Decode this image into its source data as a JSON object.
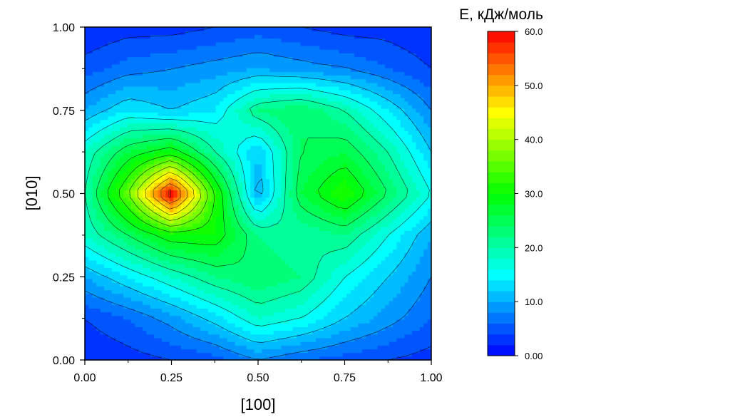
{
  "chart_data": {
    "type": "heatmap",
    "subtype": "filled-contour",
    "xlabel": "[100]",
    "ylabel": "[010]",
    "xlim": [
      0,
      1
    ],
    "ylim": [
      0,
      1
    ],
    "x_ticks": [
      "0.00",
      "0.25",
      "0.50",
      "0.75",
      "1.00"
    ],
    "y_ticks": [
      "0.00",
      "0.25",
      "0.50",
      "0.75",
      "1.00"
    ],
    "x_tick_values": [
      0,
      0.25,
      0.5,
      0.75,
      1
    ],
    "y_tick_values": [
      0,
      0.25,
      0.5,
      0.75,
      1
    ],
    "colorbar": {
      "title": "E, кДж/моль",
      "range": [
        0,
        60
      ],
      "levels": 30,
      "tick_values": [
        0,
        10,
        20,
        30,
        40,
        50,
        60
      ],
      "tick_labels": [
        "0.00",
        "10.0",
        "20.0",
        "30.0",
        "40.0",
        "50.0",
        "60.0"
      ]
    },
    "grid": false,
    "x": [
      0,
      0.125,
      0.25,
      0.375,
      0.5,
      0.625,
      0.75,
      0.875,
      1
    ],
    "y": [
      0,
      0.125,
      0.25,
      0.375,
      0.5,
      0.625,
      0.75,
      0.875,
      1
    ],
    "z": [
      [
        2,
        3,
        4,
        5,
        8,
        6,
        5,
        4,
        3
      ],
      [
        4,
        6,
        9,
        13,
        18,
        16,
        12,
        9,
        6
      ],
      [
        10,
        14,
        18,
        22,
        24,
        22,
        16,
        12,
        8
      ],
      [
        18,
        24,
        30,
        30,
        22,
        20,
        22,
        16,
        10
      ],
      [
        20,
        36,
        60,
        32,
        10,
        26,
        32,
        24,
        16
      ],
      [
        18,
        26,
        30,
        20,
        12,
        24,
        26,
        20,
        12
      ],
      [
        10,
        14,
        12,
        14,
        22,
        24,
        20,
        14,
        8
      ],
      [
        5,
        7,
        8,
        9,
        10,
        9,
        8,
        6,
        4
      ],
      [
        2,
        3,
        3,
        4,
        5,
        4,
        3,
        3,
        2
      ]
    ]
  },
  "colors": {
    "scale": [
      "#0000ff",
      "#00ffff",
      "#00ff00",
      "#ffff00",
      "#ff0000"
    ],
    "contour_line": "#000000"
  }
}
